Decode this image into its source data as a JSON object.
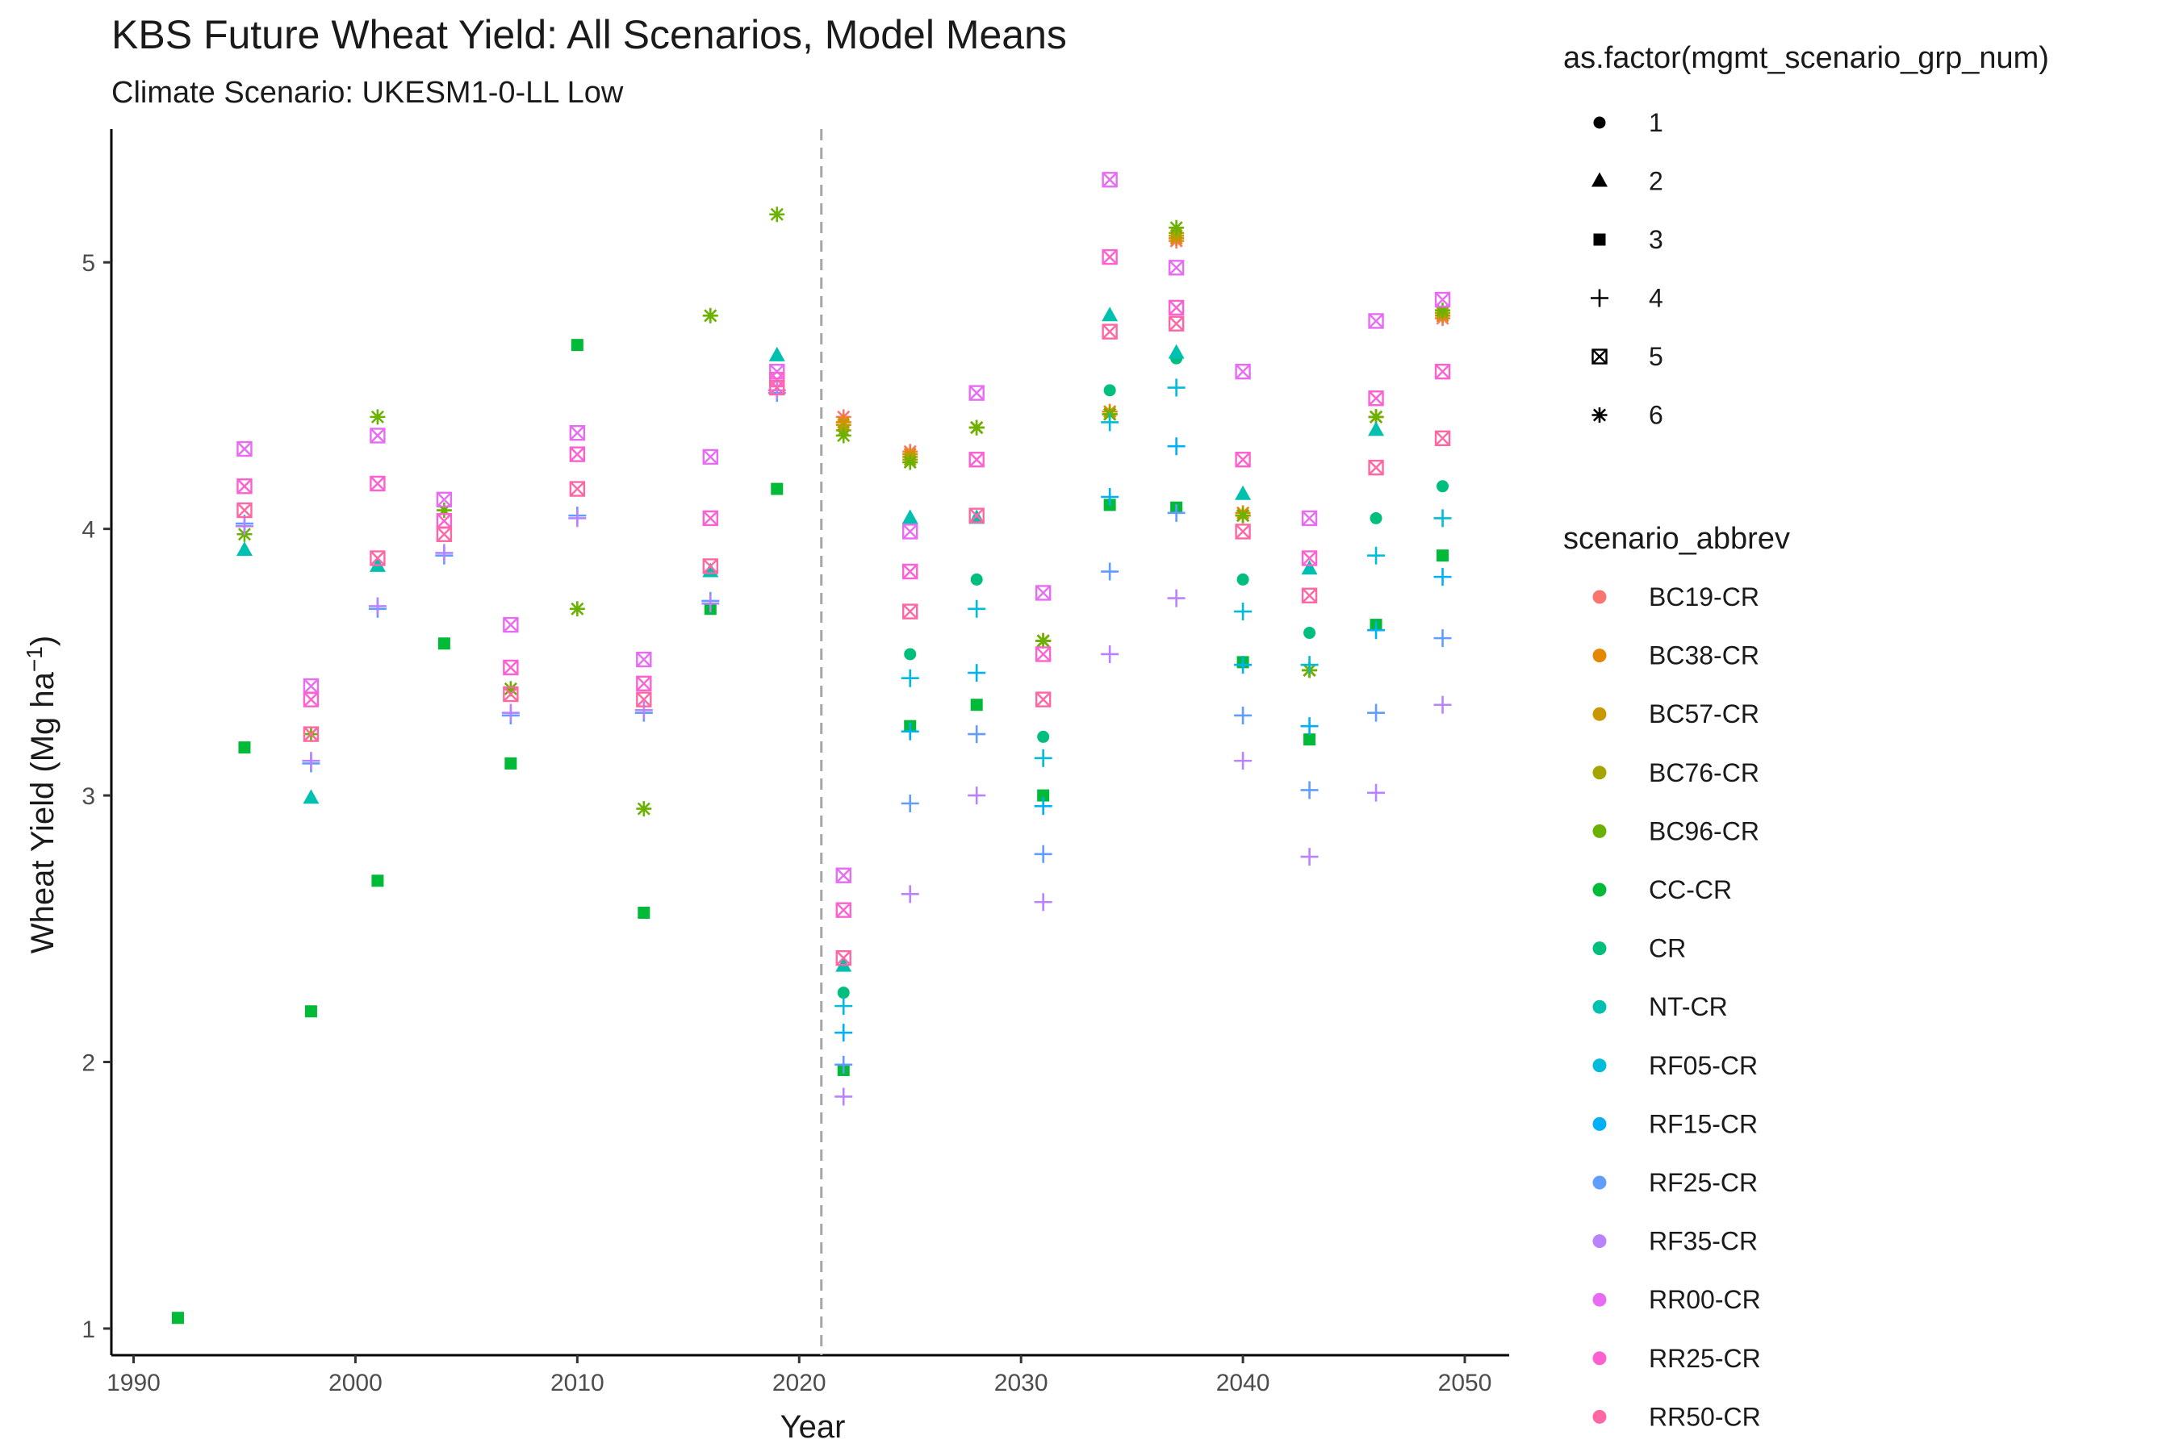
{
  "chart_data": {
    "type": "scatter",
    "title": "KBS Future Wheat Yield: All Scenarios, Model Means",
    "subtitle": "Climate Scenario: UKESM1-0-LL Low",
    "xlabel": "Year",
    "ylabel_main": "Wheat Yield (Mg ha",
    "ylabel_sup": "−1",
    "ylabel_close": ")",
    "xlim": [
      1989,
      2052
    ],
    "ylim": [
      0.9,
      5.5
    ],
    "xticks": [
      1990,
      2000,
      2010,
      2020,
      2030,
      2040,
      2050
    ],
    "yticks": [
      1,
      2,
      3,
      4,
      5
    ],
    "vline_x": 2021,
    "grid": false,
    "legend_placement": "right",
    "shape_legend": {
      "title": "as.factor(mgmt_scenario_grp_num)",
      "entries": [
        {
          "label": "1",
          "shape": "circle"
        },
        {
          "label": "2",
          "shape": "triangle"
        },
        {
          "label": "3",
          "shape": "square"
        },
        {
          "label": "4",
          "shape": "plus"
        },
        {
          "label": "5",
          "shape": "boxx"
        },
        {
          "label": "6",
          "shape": "asterisk"
        }
      ]
    },
    "color_legend": {
      "title": "scenario_abbrev",
      "entries": [
        {
          "label": "BC19-CR",
          "color": "#F8766D"
        },
        {
          "label": "BC38-CR",
          "color": "#E58700"
        },
        {
          "label": "BC57-CR",
          "color": "#C99800"
        },
        {
          "label": "BC76-CR",
          "color": "#A3A500"
        },
        {
          "label": "BC96-CR",
          "color": "#6BB100"
        },
        {
          "label": "CC-CR",
          "color": "#00BA38"
        },
        {
          "label": "CR",
          "color": "#00BF7D"
        },
        {
          "label": "NT-CR",
          "color": "#00C0AF"
        },
        {
          "label": "RF05-CR",
          "color": "#00BCD8"
        },
        {
          "label": "RF15-CR",
          "color": "#00B0F6"
        },
        {
          "label": "RF25-CR",
          "color": "#619CFF"
        },
        {
          "label": "RF35-CR",
          "color": "#B983FF"
        },
        {
          "label": "RR00-CR",
          "color": "#E76BF3"
        },
        {
          "label": "RR25-CR",
          "color": "#FD61D1"
        },
        {
          "label": "RR50-CR",
          "color": "#FF67A4"
        }
      ]
    },
    "series": [
      {
        "name": "BC19-CR",
        "shape": "asterisk",
        "color": "#F8766D",
        "points": [
          [
            2022,
            4.42
          ],
          [
            2025,
            4.29
          ],
          [
            2028,
            4.38
          ],
          [
            2031,
            3.58
          ],
          [
            2034,
            4.44
          ],
          [
            2037,
            5.08
          ],
          [
            2040,
            4.05
          ],
          [
            2043,
            3.47
          ],
          [
            2046,
            4.42
          ],
          [
            2049,
            4.79
          ]
        ]
      },
      {
        "name": "BC38-CR",
        "shape": "asterisk",
        "color": "#E58700",
        "points": [
          [
            2022,
            4.4
          ],
          [
            2025,
            4.28
          ],
          [
            2028,
            4.38
          ],
          [
            2031,
            3.58
          ],
          [
            2034,
            4.44
          ],
          [
            2037,
            5.09
          ],
          [
            2040,
            4.06
          ],
          [
            2043,
            3.47
          ],
          [
            2046,
            4.42
          ],
          [
            2049,
            4.8
          ]
        ]
      },
      {
        "name": "BC57-CR",
        "shape": "asterisk",
        "color": "#C99800",
        "points": [
          [
            2022,
            4.39
          ],
          [
            2025,
            4.27
          ],
          [
            2028,
            4.38
          ],
          [
            2031,
            3.58
          ],
          [
            2034,
            4.43
          ],
          [
            2037,
            5.1
          ],
          [
            2040,
            4.05
          ],
          [
            2043,
            3.47
          ],
          [
            2046,
            4.42
          ],
          [
            2049,
            4.81
          ]
        ]
      },
      {
        "name": "BC76-CR",
        "shape": "asterisk",
        "color": "#A3A500",
        "points": [
          [
            2022,
            4.37
          ],
          [
            2025,
            4.26
          ],
          [
            2028,
            4.38
          ],
          [
            2031,
            3.58
          ],
          [
            2034,
            4.43
          ],
          [
            2037,
            5.11
          ],
          [
            2040,
            4.05
          ],
          [
            2043,
            3.47
          ],
          [
            2046,
            4.42
          ],
          [
            2049,
            4.81
          ]
        ]
      },
      {
        "name": "BC96-CR",
        "shape": "asterisk",
        "color": "#6BB100",
        "points": [
          [
            1995,
            3.98
          ],
          [
            1998,
            3.23
          ],
          [
            2001,
            4.42
          ],
          [
            2004,
            4.07
          ],
          [
            2007,
            3.4
          ],
          [
            2010,
            3.7
          ],
          [
            2013,
            2.95
          ],
          [
            2016,
            4.8
          ],
          [
            2019,
            5.18
          ],
          [
            2022,
            4.35
          ],
          [
            2025,
            4.25
          ],
          [
            2028,
            4.38
          ],
          [
            2031,
            3.58
          ],
          [
            2034,
            4.43
          ],
          [
            2037,
            5.13
          ],
          [
            2040,
            4.05
          ],
          [
            2043,
            3.47
          ],
          [
            2046,
            4.42
          ],
          [
            2049,
            4.82
          ]
        ]
      },
      {
        "name": "CC-CR",
        "shape": "square",
        "color": "#00BA38",
        "points": [
          [
            1992,
            1.04
          ],
          [
            1995,
            3.18
          ],
          [
            1998,
            2.19
          ],
          [
            2001,
            2.68
          ],
          [
            2004,
            3.57
          ],
          [
            2007,
            3.12
          ],
          [
            2010,
            4.69
          ],
          [
            2013,
            2.56
          ],
          [
            2016,
            3.7
          ],
          [
            2019,
            4.15
          ],
          [
            2022,
            1.97
          ],
          [
            2025,
            3.26
          ],
          [
            2028,
            3.34
          ],
          [
            2031,
            3.0
          ],
          [
            2034,
            4.09
          ],
          [
            2037,
            4.08
          ],
          [
            2040,
            3.5
          ],
          [
            2043,
            3.21
          ],
          [
            2046,
            3.64
          ],
          [
            2049,
            3.9
          ]
        ]
      },
      {
        "name": "CR",
        "shape": "circle",
        "color": "#00BF7D",
        "points": [
          [
            2022,
            2.26
          ],
          [
            2025,
            3.53
          ],
          [
            2028,
            3.81
          ],
          [
            2031,
            3.22
          ],
          [
            2034,
            4.52
          ],
          [
            2037,
            4.64
          ],
          [
            2040,
            3.81
          ],
          [
            2043,
            3.61
          ],
          [
            2046,
            4.04
          ],
          [
            2049,
            4.16
          ]
        ]
      },
      {
        "name": "NT-CR",
        "shape": "triangle",
        "color": "#00C0AF",
        "points": [
          [
            1995,
            3.92
          ],
          [
            1998,
            2.99
          ],
          [
            2001,
            3.86
          ],
          [
            2016,
            3.84
          ],
          [
            2019,
            4.65
          ],
          [
            2022,
            2.36
          ],
          [
            2025,
            4.04
          ],
          [
            2028,
            4.04
          ],
          [
            2034,
            4.8
          ],
          [
            2037,
            4.66
          ],
          [
            2040,
            4.13
          ],
          [
            2043,
            3.85
          ],
          [
            2046,
            4.37
          ]
        ]
      },
      {
        "name": "RF05-CR",
        "shape": "plus",
        "color": "#00BCD8",
        "points": [
          [
            2022,
            2.21
          ],
          [
            2025,
            3.44
          ],
          [
            2028,
            3.7
          ],
          [
            2031,
            3.14
          ],
          [
            2034,
            4.4
          ],
          [
            2037,
            4.53
          ],
          [
            2040,
            3.69
          ],
          [
            2043,
            3.49
          ],
          [
            2046,
            3.9
          ],
          [
            2049,
            4.04
          ]
        ]
      },
      {
        "name": "RF15-CR",
        "shape": "plus",
        "color": "#00B0F6",
        "points": [
          [
            2022,
            2.11
          ],
          [
            2025,
            3.24
          ],
          [
            2028,
            3.46
          ],
          [
            2031,
            2.96
          ],
          [
            2034,
            4.12
          ],
          [
            2037,
            4.31
          ],
          [
            2040,
            3.49
          ],
          [
            2043,
            3.26
          ],
          [
            2046,
            3.62
          ],
          [
            2049,
            3.82
          ]
        ]
      },
      {
        "name": "RF25-CR",
        "shape": "plus",
        "color": "#619CFF",
        "points": [
          [
            1995,
            4.02
          ],
          [
            1998,
            3.12
          ],
          [
            2001,
            3.7
          ],
          [
            2004,
            3.9
          ],
          [
            2007,
            3.3
          ],
          [
            2010,
            4.05
          ],
          [
            2013,
            3.31
          ],
          [
            2016,
            3.73
          ],
          [
            2019,
            4.51
          ],
          [
            2022,
            1.99
          ],
          [
            2025,
            2.97
          ],
          [
            2028,
            3.23
          ],
          [
            2031,
            2.78
          ],
          [
            2034,
            3.84
          ],
          [
            2037,
            4.06
          ],
          [
            2040,
            3.3
          ],
          [
            2043,
            3.02
          ],
          [
            2046,
            3.31
          ],
          [
            2049,
            3.59
          ]
        ]
      },
      {
        "name": "RF35-CR",
        "shape": "plus",
        "color": "#B983FF",
        "points": [
          [
            1995,
            4.01
          ],
          [
            1998,
            3.13
          ],
          [
            2001,
            3.71
          ],
          [
            2004,
            3.91
          ],
          [
            2007,
            3.31
          ],
          [
            2010,
            4.04
          ],
          [
            2013,
            3.32
          ],
          [
            2016,
            3.72
          ],
          [
            2019,
            4.52
          ],
          [
            2022,
            1.87
          ],
          [
            2025,
            2.63
          ],
          [
            2028,
            3.0
          ],
          [
            2031,
            2.6
          ],
          [
            2034,
            3.53
          ],
          [
            2037,
            3.74
          ],
          [
            2040,
            3.13
          ],
          [
            2043,
            2.77
          ],
          [
            2046,
            3.01
          ],
          [
            2049,
            3.34
          ]
        ]
      },
      {
        "name": "RR00-CR",
        "shape": "boxx",
        "color": "#E76BF3",
        "points": [
          [
            1995,
            4.3
          ],
          [
            1998,
            3.41
          ],
          [
            2001,
            4.35
          ],
          [
            2004,
            4.11
          ],
          [
            2007,
            3.64
          ],
          [
            2010,
            4.36
          ],
          [
            2013,
            3.51
          ],
          [
            2016,
            4.27
          ],
          [
            2019,
            4.59
          ],
          [
            2022,
            2.7
          ],
          [
            2025,
            3.99
          ],
          [
            2028,
            4.51
          ],
          [
            2031,
            3.76
          ],
          [
            2034,
            5.31
          ],
          [
            2037,
            4.98
          ],
          [
            2040,
            4.59
          ],
          [
            2043,
            4.04
          ],
          [
            2046,
            4.78
          ],
          [
            2049,
            4.86
          ]
        ]
      },
      {
        "name": "RR25-CR",
        "shape": "boxx",
        "color": "#FD61D1",
        "points": [
          [
            1995,
            4.16
          ],
          [
            1998,
            3.36
          ],
          [
            2001,
            4.17
          ],
          [
            2004,
            4.03
          ],
          [
            2007,
            3.48
          ],
          [
            2010,
            4.28
          ],
          [
            2013,
            3.42
          ],
          [
            2016,
            4.04
          ],
          [
            2019,
            4.56
          ],
          [
            2022,
            2.57
          ],
          [
            2025,
            3.84
          ],
          [
            2028,
            4.26
          ],
          [
            2031,
            3.53
          ],
          [
            2034,
            5.02
          ],
          [
            2037,
            4.83
          ],
          [
            2040,
            4.26
          ],
          [
            2043,
            3.89
          ],
          [
            2046,
            4.49
          ],
          [
            2049,
            4.59
          ]
        ]
      },
      {
        "name": "RR50-CR",
        "shape": "boxx",
        "color": "#FF67A4",
        "points": [
          [
            1995,
            4.07
          ],
          [
            1998,
            3.23
          ],
          [
            2001,
            3.89
          ],
          [
            2004,
            3.98
          ],
          [
            2007,
            3.38
          ],
          [
            2010,
            4.15
          ],
          [
            2013,
            3.36
          ],
          [
            2016,
            3.86
          ],
          [
            2019,
            4.53
          ],
          [
            2022,
            2.39
          ],
          [
            2025,
            3.69
          ],
          [
            2028,
            4.05
          ],
          [
            2031,
            3.36
          ],
          [
            2034,
            4.74
          ],
          [
            2037,
            4.77
          ],
          [
            2040,
            3.99
          ],
          [
            2043,
            3.75
          ],
          [
            2046,
            4.23
          ],
          [
            2049,
            4.34
          ]
        ]
      }
    ]
  }
}
